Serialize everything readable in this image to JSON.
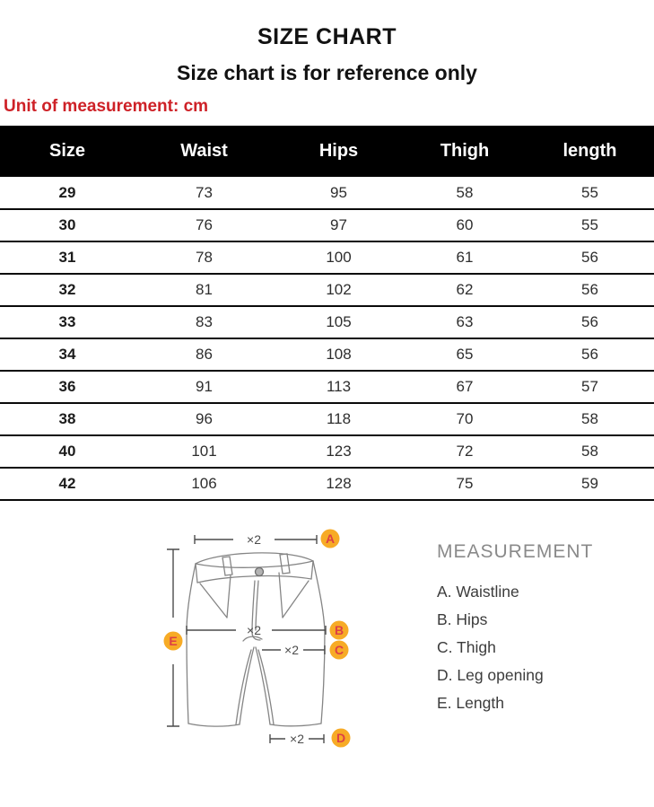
{
  "page": {
    "title": "SIZE CHART",
    "subtitle": "Size chart is for reference only",
    "unit_note": "Unit of measurement: cm"
  },
  "size_table": {
    "columns": [
      "Size",
      "Waist",
      "Hips",
      "Thigh",
      "length"
    ],
    "rows": [
      [
        "29",
        "73",
        "95",
        "58",
        "55"
      ],
      [
        "30",
        "76",
        "97",
        "60",
        "55"
      ],
      [
        "31",
        "78",
        "100",
        "61",
        "56"
      ],
      [
        "32",
        "81",
        "102",
        "62",
        "56"
      ],
      [
        "33",
        "83",
        "105",
        "63",
        "56"
      ],
      [
        "34",
        "86",
        "108",
        "65",
        "56"
      ],
      [
        "36",
        "91",
        "113",
        "67",
        "57"
      ],
      [
        "38",
        "96",
        "118",
        "70",
        "58"
      ],
      [
        "40",
        "101",
        "123",
        "72",
        "58"
      ],
      [
        "42",
        "106",
        "128",
        "75",
        "59"
      ]
    ]
  },
  "diagram": {
    "multiplier_label": "×2",
    "markers": [
      {
        "letter": "A"
      },
      {
        "letter": "B"
      },
      {
        "letter": "C"
      },
      {
        "letter": "D"
      },
      {
        "letter": "E"
      }
    ],
    "colors": {
      "marker_fill": "#F7AB26",
      "marker_letter": "#DD4045",
      "garment_line": "#858585",
      "measure_line": "#4c4c4c"
    }
  },
  "legend": {
    "heading": "MEASUREMENT",
    "items": [
      "A. Waistline",
      "B. Hips",
      "C. Thigh",
      "D. Leg opening",
      "E. Length"
    ]
  },
  "colors": {
    "accent_red": "#CE2127",
    "header_bg": "#000000",
    "header_text": "#FFFFFF"
  }
}
